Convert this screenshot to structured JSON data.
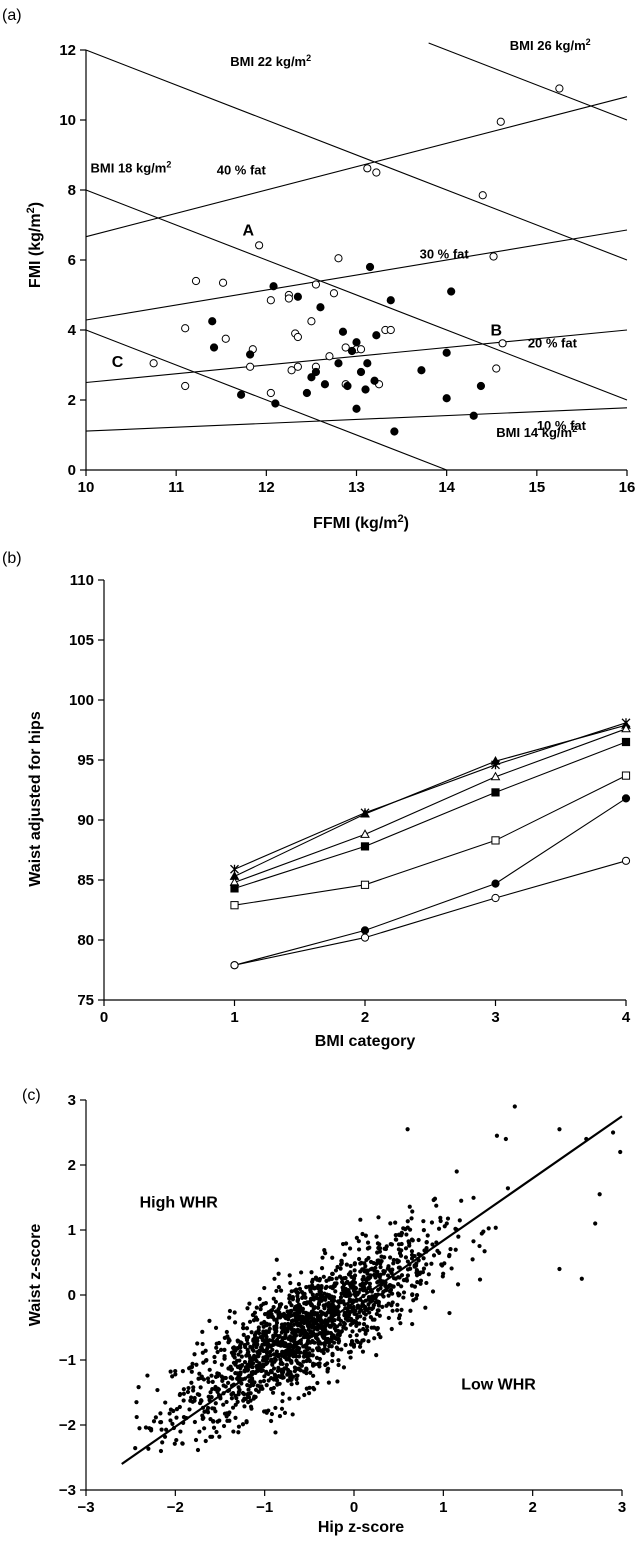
{
  "chart_data": [
    {
      "panel": "(a)",
      "type": "scatter",
      "xlabel": "FFMI (kg/m",
      "xlabel_sup": "2",
      "xlabel_end": ")",
      "ylabel": "FMI (kg/m",
      "ylabel_sup": "2",
      "ylabel_end": ")",
      "xlim": [
        10,
        16
      ],
      "ylim": [
        0,
        12
      ],
      "xticks": [
        10,
        11,
        12,
        13,
        14,
        15,
        16
      ],
      "yticks": [
        0,
        2,
        4,
        6,
        8,
        10,
        12
      ],
      "bmi_lines": [
        {
          "bmi": 14,
          "label": "BMI  14 kg/m",
          "sup": "2",
          "lx": 14.55,
          "ly": 0.95
        },
        {
          "bmi": 18,
          "label": "BMI 18 kg/m",
          "sup": "2",
          "lx": 10.05,
          "ly": 8.5
        },
        {
          "bmi": 22,
          "label": "BMI  22 kg/m",
          "sup": "2",
          "lx": 11.6,
          "ly": 11.55
        },
        {
          "bmi": 26,
          "label": "BMI  26 kg/m",
          "sup": "2",
          "lx": 14.7,
          "ly": 12.0,
          "xfrom": 13.8
        }
      ],
      "fat_lines": [
        {
          "pct": 10,
          "label": "10 % fat",
          "lx": 15.0,
          "ly": 1.15
        },
        {
          "pct": 20,
          "label": "20 % fat",
          "lx": 14.9,
          "ly": 3.5
        },
        {
          "pct": 30,
          "label": "30 % fat",
          "lx": 13.7,
          "ly": 6.05
        },
        {
          "pct": 40,
          "label": "40 % fat",
          "lx": 11.45,
          "ly": 8.45
        }
      ],
      "point_labels": [
        {
          "text": "A",
          "x": 11.8,
          "y": 6.7
        },
        {
          "text": "B",
          "x": 14.55,
          "y": 3.85
        },
        {
          "text": "C",
          "x": 10.35,
          "y": 2.95
        }
      ],
      "series": [
        {
          "marker": "open-circle",
          "points": [
            [
              10.75,
              3.05
            ],
            [
              11.1,
              4.05
            ],
            [
              11.1,
              2.4
            ],
            [
              11.22,
              5.4
            ],
            [
              11.52,
              5.35
            ],
            [
              11.55,
              3.75
            ],
            [
              11.82,
              2.95
            ],
            [
              11.85,
              3.45
            ],
            [
              11.92,
              6.42
            ],
            [
              12.05,
              4.85
            ],
            [
              12.05,
              2.2
            ],
            [
              12.25,
              5.0
            ],
            [
              12.25,
              4.9
            ],
            [
              12.28,
              2.85
            ],
            [
              12.32,
              3.9
            ],
            [
              12.35,
              3.8
            ],
            [
              12.35,
              2.95
            ],
            [
              12.5,
              4.25
            ],
            [
              12.55,
              5.3
            ],
            [
              12.55,
              2.95
            ],
            [
              12.7,
              3.25
            ],
            [
              12.75,
              5.05
            ],
            [
              12.8,
              6.05
            ],
            [
              12.88,
              3.5
            ],
            [
              12.88,
              2.45
            ],
            [
              13.0,
              3.45
            ],
            [
              13.05,
              3.45
            ],
            [
              13.12,
              8.62
            ],
            [
              13.22,
              8.5
            ],
            [
              13.25,
              2.45
            ],
            [
              13.32,
              4.0
            ],
            [
              13.38,
              4.0
            ],
            [
              14.4,
              7.85
            ],
            [
              14.52,
              6.1
            ],
            [
              14.55,
              2.9
            ],
            [
              14.6,
              9.95
            ],
            [
              14.62,
              3.62
            ],
            [
              15.25,
              10.9
            ]
          ]
        },
        {
          "marker": "filled-circle",
          "points": [
            [
              11.4,
              4.25
            ],
            [
              11.42,
              3.5
            ],
            [
              11.72,
              2.15
            ],
            [
              11.82,
              3.3
            ],
            [
              12.08,
              5.25
            ],
            [
              12.1,
              1.9
            ],
            [
              12.35,
              4.95
            ],
            [
              12.45,
              2.2
            ],
            [
              12.5,
              2.65
            ],
            [
              12.55,
              2.8
            ],
            [
              12.6,
              4.65
            ],
            [
              12.65,
              2.45
            ],
            [
              12.8,
              3.05
            ],
            [
              12.85,
              3.95
            ],
            [
              12.9,
              2.4
            ],
            [
              12.95,
              3.4
            ],
            [
              13.0,
              1.75
            ],
            [
              13.0,
              3.65
            ],
            [
              13.05,
              2.8
            ],
            [
              13.1,
              2.3
            ],
            [
              13.12,
              3.05
            ],
            [
              13.15,
              5.8
            ],
            [
              13.2,
              2.55
            ],
            [
              13.22,
              3.85
            ],
            [
              13.38,
              4.85
            ],
            [
              13.42,
              1.1
            ],
            [
              13.72,
              2.85
            ],
            [
              14.0,
              2.05
            ],
            [
              14.0,
              3.35
            ],
            [
              14.05,
              5.1
            ],
            [
              14.3,
              1.55
            ],
            [
              14.38,
              2.4
            ]
          ]
        }
      ]
    },
    {
      "panel": "(b)",
      "type": "line",
      "xlabel": "BMI category",
      "ylabel": "Waist adjusted for hips",
      "xlim": [
        0,
        4
      ],
      "ylim": [
        75,
        110
      ],
      "xticks": [
        0,
        1,
        2,
        3,
        4
      ],
      "yticks": [
        75,
        80,
        85,
        90,
        95,
        100,
        105,
        110
      ],
      "x": [
        1,
        2,
        3,
        4
      ],
      "series": [
        {
          "marker": "star",
          "values": [
            85.9,
            90.6,
            94.6,
            98.1
          ]
        },
        {
          "marker": "filled-triangle",
          "values": [
            85.3,
            90.5,
            94.9,
            97.9
          ]
        },
        {
          "marker": "open-triangle",
          "values": [
            84.8,
            88.8,
            93.6,
            97.6
          ]
        },
        {
          "marker": "filled-square",
          "values": [
            84.3,
            87.8,
            92.3,
            96.5
          ]
        },
        {
          "marker": "open-square",
          "values": [
            82.9,
            84.6,
            88.3,
            93.7
          ]
        },
        {
          "marker": "filled-circle",
          "values": [
            77.9,
            80.8,
            84.7,
            91.8
          ]
        },
        {
          "marker": "open-circle",
          "values": [
            77.9,
            80.2,
            83.5,
            86.6
          ]
        }
      ]
    },
    {
      "panel": "(c)",
      "type": "scatter",
      "xlabel": "Hip z-score",
      "ylabel": "Waist z-score",
      "xlim": [
        -3,
        3
      ],
      "ylim": [
        -3,
        3
      ],
      "xticks": [
        "−3",
        "−2",
        "−1",
        "0",
        "1",
        "2",
        "3"
      ],
      "yticks": [
        "−3",
        "−2",
        "−1",
        "0",
        "1",
        "2",
        "3"
      ],
      "fit_line": {
        "x": [
          -2.6,
          3.0
        ],
        "y": [
          -2.6,
          2.75
        ]
      },
      "regions": [
        {
          "text": "High WHR",
          "x": -2.4,
          "y": 1.35
        },
        {
          "text": "Low WHR",
          "x": 1.2,
          "y": -1.45
        }
      ],
      "cloud": {
        "count": 1700,
        "center": [
          -0.55,
          -0.55
        ],
        "sd": 0.72,
        "corr": 0.82
      },
      "outliers": [
        [
          1.8,
          2.9
        ],
        [
          2.6,
          2.4
        ],
        [
          2.9,
          2.5
        ],
        [
          2.98,
          2.2
        ],
        [
          2.75,
          1.55
        ],
        [
          2.7,
          1.1
        ],
        [
          1.7,
          2.4
        ],
        [
          2.3,
          2.55
        ],
        [
          2.55,
          0.25
        ],
        [
          2.3,
          0.4
        ],
        [
          1.6,
          2.45
        ],
        [
          0.6,
          2.55
        ],
        [
          1.15,
          1.9
        ],
        [
          1.2,
          1.45
        ]
      ]
    }
  ]
}
